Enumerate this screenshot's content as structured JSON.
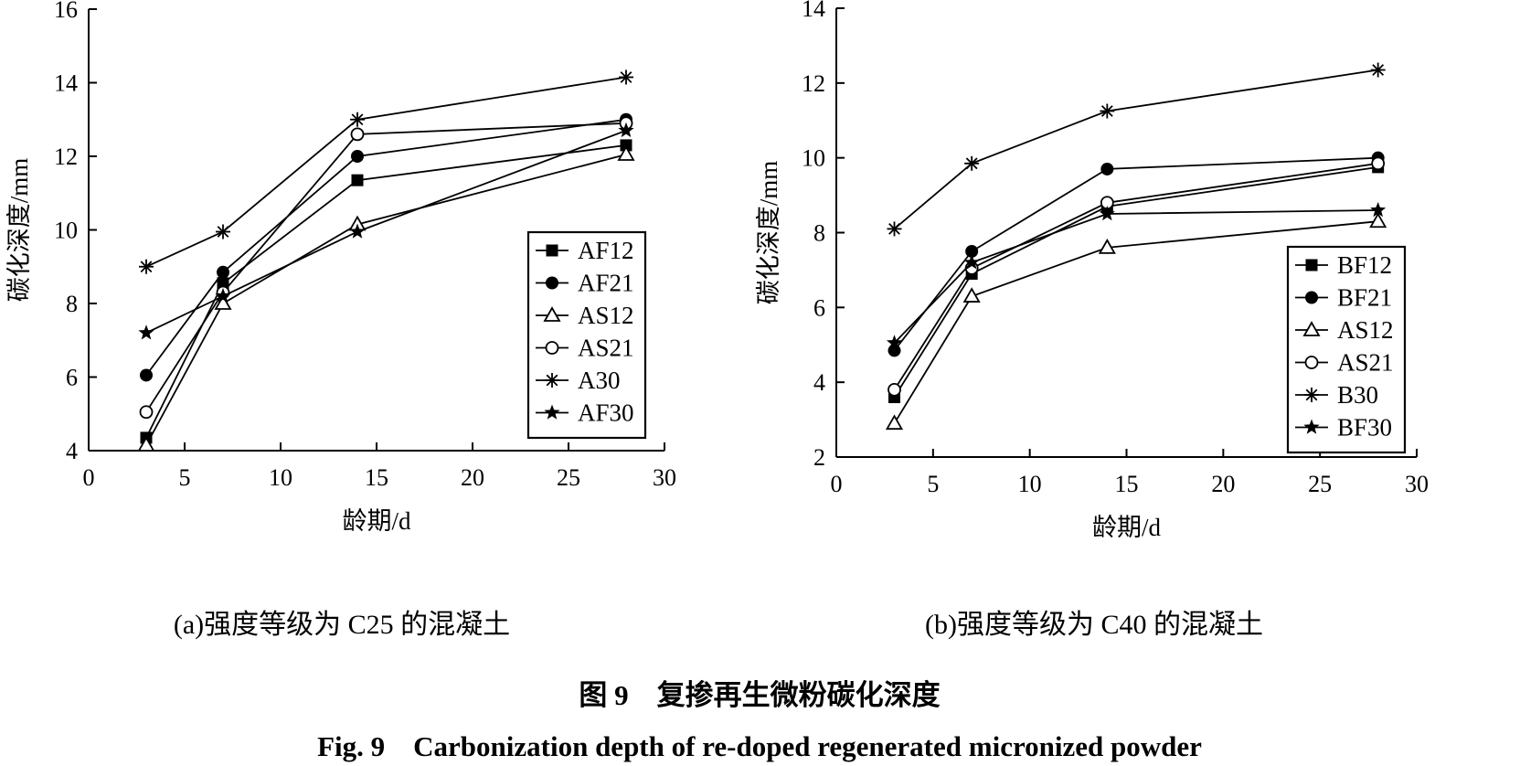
{
  "chart_data": [
    {
      "type": "line",
      "caption": "(a)强度等级为 C25 的混凝土",
      "xlabel": "龄期/d",
      "ylabel": "碳化深度/mm",
      "xlim": [
        0,
        30
      ],
      "ylim": [
        4,
        16
      ],
      "xticks": [
        0,
        5,
        10,
        15,
        20,
        25,
        30
      ],
      "yticks": [
        4,
        6,
        8,
        10,
        12,
        14,
        16
      ],
      "x": [
        3,
        7,
        14,
        28
      ],
      "legend_position": "right",
      "series": [
        {
          "name": "AF12",
          "marker": "square-filled",
          "values": [
            4.35,
            8.55,
            11.35,
            12.3
          ]
        },
        {
          "name": "AF21",
          "marker": "circle-filled",
          "values": [
            6.05,
            8.85,
            12.0,
            13.0
          ]
        },
        {
          "name": "AS12",
          "marker": "triangle-open",
          "values": [
            4.15,
            8.0,
            10.15,
            12.05
          ]
        },
        {
          "name": "AS21",
          "marker": "circle-open",
          "values": [
            5.05,
            8.3,
            12.6,
            12.9
          ]
        },
        {
          "name": "A30",
          "marker": "asterisk",
          "values": [
            9.0,
            9.95,
            13.0,
            14.15
          ]
        },
        {
          "name": "AF30",
          "marker": "star-filled",
          "values": [
            7.2,
            8.2,
            9.95,
            12.7
          ]
        }
      ]
    },
    {
      "type": "line",
      "caption": "(b)强度等级为 C40 的混凝土",
      "xlabel": "龄期/d",
      "ylabel": "碳化深度/mm",
      "xlim": [
        0,
        30
      ],
      "ylim": [
        2,
        14
      ],
      "xticks": [
        0,
        5,
        10,
        15,
        20,
        25,
        30
      ],
      "yticks": [
        2,
        4,
        6,
        8,
        10,
        12,
        14
      ],
      "x": [
        3,
        7,
        14,
        28
      ],
      "legend_position": "bottom-right",
      "series": [
        {
          "name": "BF12",
          "marker": "square-filled",
          "values": [
            3.6,
            6.9,
            8.7,
            9.75
          ]
        },
        {
          "name": "BF21",
          "marker": "circle-filled",
          "values": [
            4.85,
            7.5,
            9.7,
            10.0
          ]
        },
        {
          "name": "AS12",
          "marker": "triangle-open",
          "values": [
            2.9,
            6.3,
            7.6,
            8.3
          ]
        },
        {
          "name": "AS21",
          "marker": "circle-open",
          "values": [
            3.8,
            7.05,
            8.8,
            9.85
          ]
        },
        {
          "name": "B30",
          "marker": "asterisk",
          "values": [
            8.1,
            9.85,
            11.25,
            12.35
          ]
        },
        {
          "name": "BF30",
          "marker": "star-filled",
          "values": [
            5.05,
            7.2,
            8.5,
            8.6
          ]
        }
      ]
    }
  ],
  "figure": {
    "title_cn": "图 9　复掺再生微粉碳化深度",
    "title_en": "Fig. 9　Carbonization depth of re-doped regenerated micronized powder"
  }
}
